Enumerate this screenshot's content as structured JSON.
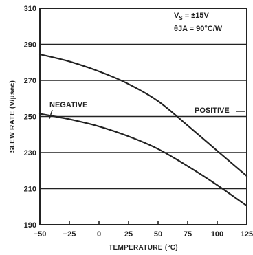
{
  "chart_data": {
    "type": "line",
    "xlabel": "TEMPERATURE (°C)",
    "ylabel": "SLEW RATE (V/μsec)",
    "xlim": [
      -50,
      125
    ],
    "ylim": [
      190,
      310
    ],
    "x_ticks": [
      "−50",
      "−25",
      "0",
      "25",
      "50",
      "75",
      "100",
      "125"
    ],
    "y_ticks": [
      "190",
      "210",
      "230",
      "250",
      "270",
      "290",
      "310"
    ],
    "grid": "horizontal",
    "annotations": [
      {
        "text": "VS = ±15V",
        "main": "V",
        "sub": "S",
        "rest": " = ±15V"
      },
      {
        "text": "θJA = 90°C/W"
      }
    ],
    "series": [
      {
        "name": "NEGATIVE",
        "x": [
          -50,
          -25,
          0,
          25,
          50,
          75,
          100,
          125
        ],
        "y": [
          251.5,
          248.5,
          244.5,
          239,
          232,
          222.5,
          212,
          200.5
        ]
      },
      {
        "name": "POSITIVE",
        "x": [
          -50,
          -25,
          0,
          25,
          50,
          75,
          100,
          125
        ],
        "y": [
          284.5,
          280.5,
          275,
          268,
          258.5,
          245,
          231,
          217
        ]
      }
    ]
  }
}
